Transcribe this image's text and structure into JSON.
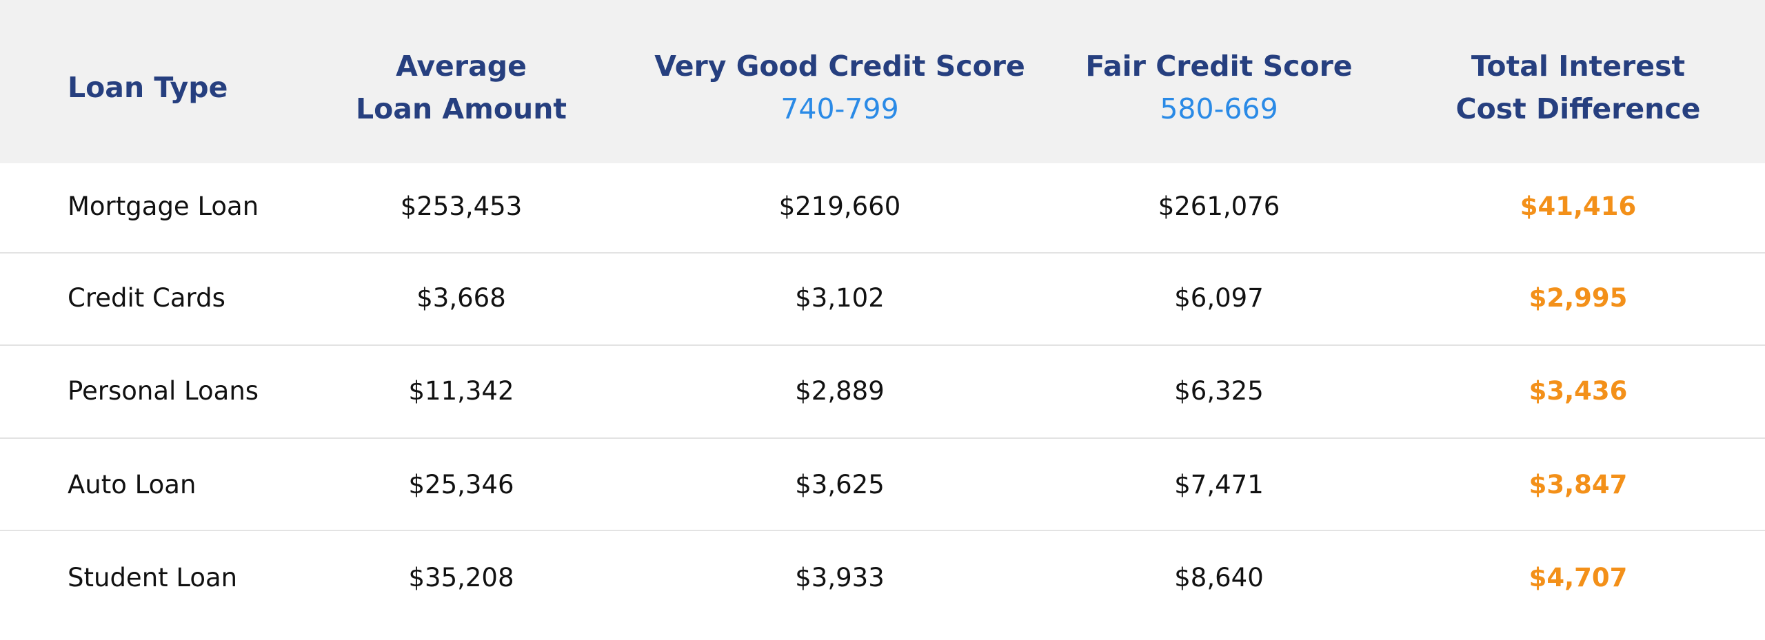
{
  "table": {
    "columns": [
      {
        "title": [
          "Loan Type"
        ]
      },
      {
        "title": [
          "Average",
          "Loan Amount"
        ]
      },
      {
        "title": [
          "Very Good Credit Score"
        ],
        "range": "740-799"
      },
      {
        "title": [
          "Fair Credit Score"
        ],
        "range": "580-669"
      },
      {
        "title": [
          "Total Interest",
          "Cost Difference"
        ]
      }
    ],
    "rows": [
      [
        "Mortgage Loan",
        "$253,453",
        "$219,660",
        "$261,076",
        "$41,416"
      ],
      [
        "Credit Cards",
        "$3,668",
        "$3,102",
        "$6,097",
        "$2,995"
      ],
      [
        "Personal Loans",
        "$11,342",
        "$2,889",
        "$6,325",
        "$3,436"
      ],
      [
        "Auto Loan",
        "$25,346",
        "$3,625",
        "$7,471",
        "$3,847"
      ],
      [
        "Student Loan",
        "$35,208",
        "$3,933",
        "$8,640",
        "$4,707"
      ]
    ]
  }
}
